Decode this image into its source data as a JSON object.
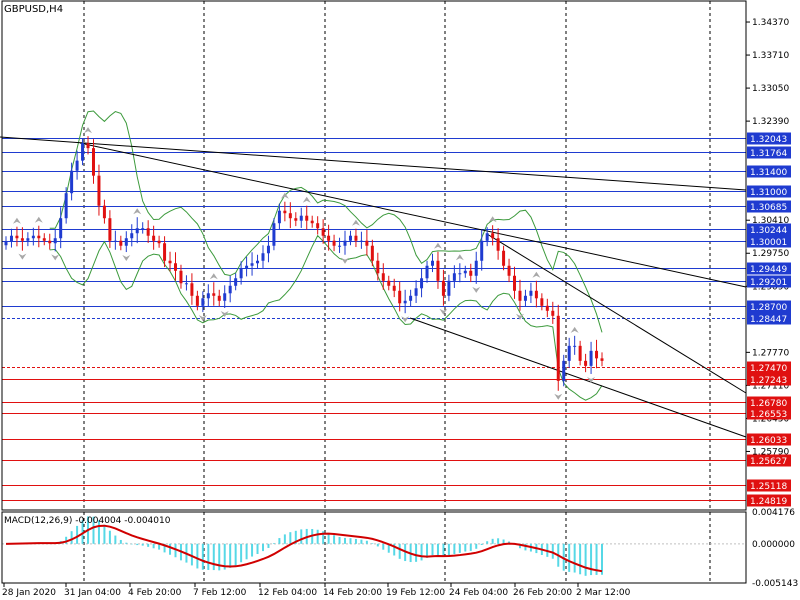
{
  "colors": {
    "background": "#ffffff",
    "axis": "#000000",
    "grid": "#000000",
    "bull_candle": "#1f3bd0",
    "bear_candle": "#e01010",
    "blue_level": "#1f3bd0",
    "red_level": "#e01010",
    "envelope": "#3c9a3c",
    "trendline": "#000000",
    "fractal": "#a8a8a8",
    "macd_hist": "#56d8e6",
    "macd_signal": "#d00000"
  },
  "chart_data": {
    "type": "candlestick",
    "title": "GBPUSD,H4",
    "price_axis_ticks": [
      "1.34370",
      "1.33710",
      "1.33050",
      "1.32390",
      "1.30410",
      "1.29750",
      "1.29090",
      "1.27770",
      "1.27110",
      "1.26450",
      "1.25790"
    ],
    "y_range": [
      1.2462,
      1.3481
    ],
    "time_labels": [
      "28 Jan 2020",
      "31 Jan 04:00",
      "4 Feb 20:00",
      "7 Feb 12:00",
      "12 Feb 04:00",
      "14 Feb 20:00",
      "19 Feb 12:00",
      "24 Feb 04:00",
      "26 Feb 20:00",
      "2 Mar 12:00"
    ],
    "price_levels": [
      {
        "value": "1.32043",
        "color": "blue"
      },
      {
        "value": "1.31764",
        "color": "blue"
      },
      {
        "value": "1.31400",
        "color": "blue"
      },
      {
        "value": "1.31000",
        "color": "blue"
      },
      {
        "value": "1.30685",
        "color": "blue"
      },
      {
        "value": "1.30244",
        "color": "blue"
      },
      {
        "value": "1.30001",
        "color": "blue"
      },
      {
        "value": "1.29449",
        "color": "blue"
      },
      {
        "value": "1.29201",
        "color": "blue"
      },
      {
        "value": "1.28700",
        "color": "blue"
      },
      {
        "value": "1.28447",
        "color": "blue",
        "dashed": true
      },
      {
        "value": "1.27470",
        "color": "red",
        "dashed": true
      },
      {
        "value": "1.27243",
        "color": "red"
      },
      {
        "value": "1.26780",
        "color": "red"
      },
      {
        "value": "1.26553",
        "color": "red"
      },
      {
        "value": "1.26033",
        "color": "red"
      },
      {
        "value": "1.25627",
        "color": "red"
      },
      {
        "value": "1.25118",
        "color": "red"
      },
      {
        "value": "1.24819",
        "color": "red"
      }
    ],
    "closes": [
      1.2999,
      1.301,
      1.3005,
      1.3,
      1.3005,
      1.301,
      1.3005,
      1.3,
      1.2995,
      1.3005,
      1.3045,
      1.3095,
      1.314,
      1.316,
      1.3195,
      1.3185,
      1.313,
      1.307,
      1.3045,
      1.3,
      1.3,
      1.299,
      1.3005,
      1.3015,
      1.3025,
      1.3025,
      1.301,
      1.3,
      1.2995,
      1.296,
      1.2955,
      1.294,
      1.2915,
      1.2915,
      1.289,
      1.287,
      1.2885,
      1.2895,
      1.289,
      1.288,
      1.2895,
      1.291,
      1.2925,
      1.2945,
      1.295,
      1.2955,
      1.296,
      1.2975,
      1.299,
      1.3035,
      1.306,
      1.3055,
      1.3045,
      1.304,
      1.305,
      1.304,
      1.3035,
      1.3025,
      1.301,
      1.3,
      1.299,
      1.299,
      1.3,
      1.301,
      1.3,
      1.3,
      1.299,
      1.296,
      1.2935,
      1.292,
      1.291,
      1.29,
      1.2875,
      1.288,
      1.289,
      1.2905,
      1.2925,
      1.295,
      1.296,
      1.292,
      1.289,
      1.292,
      1.2935,
      1.2935,
      1.294,
      1.293,
      1.296,
      1.3,
      1.3015,
      1.3005,
      1.298,
      1.295,
      1.293,
      1.29,
      1.288,
      1.289,
      1.29,
      1.2885,
      1.287,
      1.286,
      1.285,
      1.272,
      1.276,
      1.279,
      1.279,
      1.276,
      1.275,
      1.278,
      1.2765,
      1.276
    ],
    "macd": {
      "label": "MACD(12,26,9) -0.004004 -0.004010",
      "ticks": [
        "0.004176",
        "0.000000",
        "-0.005143"
      ],
      "range": [
        -0.005143,
        0.004176
      ]
    }
  }
}
